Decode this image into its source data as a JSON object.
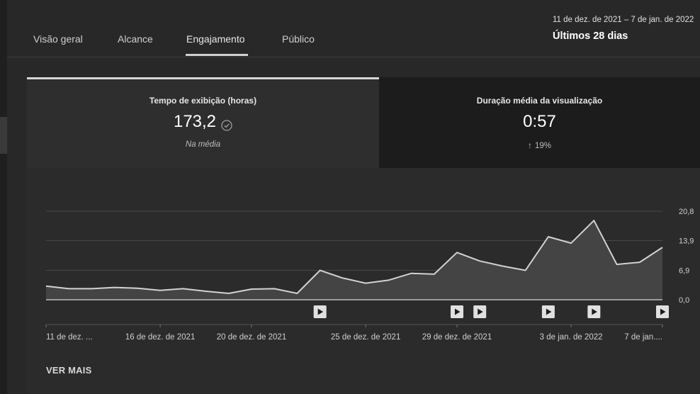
{
  "tabs": [
    {
      "label": "Visão geral"
    },
    {
      "label": "Alcance"
    },
    {
      "label": "Engajamento"
    },
    {
      "label": "Público"
    }
  ],
  "active_tab": "Engajamento",
  "date_range": {
    "range": "11 de dez. de 2021 – 7 de jan. de 2022",
    "period": "Últimos 28 dias"
  },
  "metrics": {
    "watch_time": {
      "label": "Tempo de exibição (horas)",
      "value": "173,2",
      "sub": "Na média"
    },
    "avg_duration": {
      "label": "Duração média da visualização",
      "value": "0:57",
      "change": "19%"
    }
  },
  "icons": {
    "check": "check-circle-icon",
    "arrow": "arrow-up-icon",
    "play": "play-icon"
  },
  "ver_mais": "VER MAIS",
  "chart_data": {
    "type": "area",
    "x": [
      "11 dez",
      "12 dez",
      "13 dez",
      "14 dez",
      "15 dez",
      "16 dez",
      "17 dez",
      "18 dez",
      "19 dez",
      "20 dez",
      "21 dez",
      "22 dez",
      "23 dez",
      "24 dez",
      "25 dez",
      "26 dez",
      "27 dez",
      "28 dez",
      "29 dez",
      "30 dez",
      "31 dez",
      "1 jan",
      "2 jan",
      "3 jan",
      "4 jan",
      "5 jan",
      "6 jan",
      "7 jan"
    ],
    "values": [
      3.2,
      2.6,
      2.6,
      2.9,
      2.7,
      2.2,
      2.6,
      2.0,
      1.5,
      2.5,
      2.6,
      1.5,
      6.9,
      5.1,
      3.9,
      4.6,
      6.2,
      6.0,
      11.1,
      9.1,
      7.9,
      6.9,
      14.8,
      13.3,
      18.6,
      8.3,
      8.8,
      12.3
    ],
    "x_tick_labels": [
      "11 de dez. ...",
      "16 de dez. de 2021",
      "20 de dez. de 2021",
      "25 de dez. de 2021",
      "29 de dez. de 2021",
      "3 de jan. de 2022",
      "7 de jan...."
    ],
    "x_tick_indices": [
      0,
      5,
      9,
      14,
      18,
      23,
      27
    ],
    "y_ticks": [
      "0,0",
      "6,9",
      "13,9",
      "20,8"
    ],
    "y_tick_values": [
      0,
      6.9,
      13.9,
      20.8
    ],
    "ylim": [
      0,
      20.8
    ],
    "markers_at_index": [
      12,
      18,
      19,
      22,
      24,
      27
    ],
    "grid": true,
    "y_axis_position": "right",
    "colors": {
      "line": "#d2d2d2",
      "fill": "#444444",
      "grid": "#474747",
      "baseline": "#bbbbbb",
      "marker_bg": "#e0e0e0",
      "marker_fg": "#1c1c1c"
    }
  }
}
